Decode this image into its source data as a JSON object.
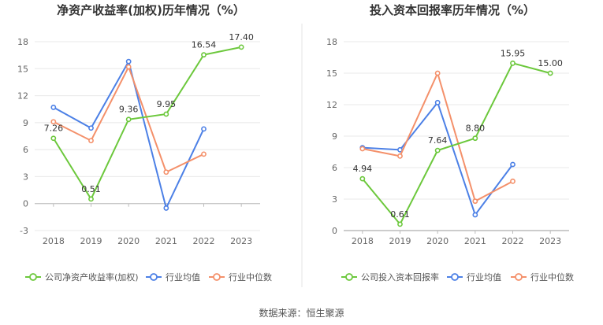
{
  "source": "数据来源：恒生聚源",
  "colors": {
    "company": "#6cc83c",
    "avg": "#4c80e6",
    "median": "#f4906a",
    "grid": "#e8e8e8",
    "axis": "#999999"
  },
  "chart_data": [
    {
      "type": "line",
      "title": "净资产收益率(加权)历年情况（%）",
      "categories": [
        "2018",
        "2019",
        "2020",
        "2021",
        "2022",
        "2023"
      ],
      "yticks": [
        "18",
        "15",
        "12",
        "9",
        "6",
        "3",
        "0",
        "-3"
      ],
      "ylim": [
        -3,
        18
      ],
      "grid": true,
      "legend_position": "bottom",
      "series": [
        {
          "name": "公司净资产收益率(加权)",
          "key": "company",
          "values": [
            7.26,
            0.51,
            9.36,
            9.95,
            16.54,
            17.4
          ],
          "labels": [
            "7.26",
            "0.51",
            "9.36",
            "9.95",
            "16.54",
            "17.40"
          ]
        },
        {
          "name": "行业均值",
          "key": "avg",
          "values": [
            10.7,
            8.4,
            15.8,
            -0.5,
            8.3,
            null
          ]
        },
        {
          "name": "行业中位数",
          "key": "median",
          "values": [
            9.1,
            7.0,
            15.2,
            3.5,
            5.5,
            null
          ]
        }
      ]
    },
    {
      "type": "line",
      "title": "投入资本回报率历年情况（%）",
      "categories": [
        "2018",
        "2019",
        "2020",
        "2021",
        "2022",
        "2023"
      ],
      "yticks": [
        "18",
        "15",
        "12",
        "9",
        "6",
        "3",
        "0"
      ],
      "ylim": [
        0,
        18
      ],
      "grid": true,
      "legend_position": "bottom",
      "series": [
        {
          "name": "公司投入资本回报率",
          "key": "company",
          "values": [
            4.94,
            0.61,
            7.64,
            8.8,
            15.95,
            15.0
          ],
          "labels": [
            "4.94",
            "0.61",
            "7.64",
            "8.80",
            "15.95",
            "15.00"
          ]
        },
        {
          "name": "行业均值",
          "key": "avg",
          "values": [
            7.9,
            7.7,
            12.2,
            1.5,
            6.3,
            null
          ]
        },
        {
          "name": "行业中位数",
          "key": "median",
          "values": [
            7.8,
            7.1,
            15.0,
            2.8,
            4.7,
            null
          ]
        }
      ]
    }
  ]
}
